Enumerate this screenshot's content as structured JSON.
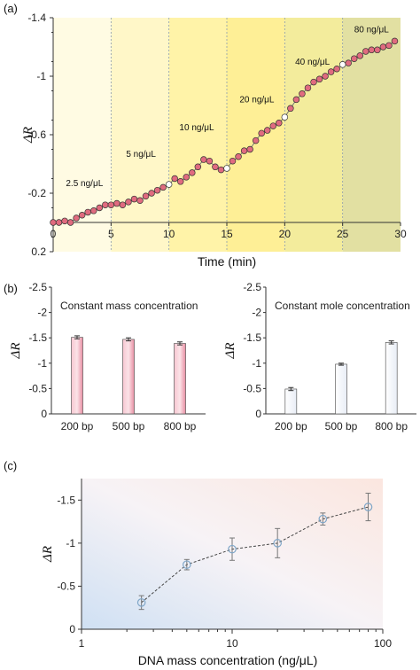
{
  "colors": {
    "marker_fill": "#e06b7f",
    "marker_open": "#ffffff",
    "bar_pink": "#f2a6b6",
    "bar_white": "#ffffff",
    "line_gray": "#777777",
    "marker_blue": "#7fa6c8"
  },
  "chart_data": [
    {
      "panel": "(a)",
      "type": "scatter",
      "xlabel": "Time (min)",
      "ylabel": "ΔR",
      "xlim": [
        0,
        30
      ],
      "ylim": [
        0.2,
        -1.4
      ],
      "y_inverted": true,
      "xticks": [
        0,
        5,
        10,
        15,
        20,
        25,
        30
      ],
      "yticks": [
        {
          "v": -1.4,
          "label": "-1.4"
        },
        {
          "v": -1.0,
          "label": "-1"
        },
        {
          "v": -0.6,
          "label": "-0.6"
        },
        {
          "v": -0.2,
          "label": "-0.2"
        },
        {
          "v": 0.2,
          "label": "0.2"
        }
      ],
      "segments": [
        {
          "x0": 0,
          "x1": 5,
          "label": "2.5 ng/μL",
          "label_x": 1.1,
          "label_y": -0.25,
          "color": "#fffbe3"
        },
        {
          "x0": 5,
          "x1": 10,
          "label": "5 ng/μL",
          "label_x": 6.3,
          "label_y": -0.45,
          "color": "#fff7c8"
        },
        {
          "x0": 10,
          "x1": 15,
          "label": "10 ng/μL",
          "label_x": 10.9,
          "label_y": -0.63,
          "color": "#fff3a8"
        },
        {
          "x0": 15,
          "x1": 20,
          "label": "20 ng/μL",
          "label_x": 16.1,
          "label_y": -0.82,
          "color": "#feef96"
        },
        {
          "x0": 20,
          "x1": 25,
          "label": "40 ng/μL",
          "label_x": 20.9,
          "label_y": -1.08,
          "color": "#f3ec9c"
        },
        {
          "x0": 25,
          "x1": 30,
          "label": "80 ng/μL",
          "label_x": 26.0,
          "label_y": -1.3,
          "color": "#e2e0a2"
        }
      ],
      "x": [
        0,
        0.5,
        1,
        1.5,
        2,
        2.5,
        3,
        3.5,
        4,
        4.5,
        5,
        5.5,
        6,
        6.5,
        7,
        7.5,
        8,
        8.5,
        9,
        9.5,
        10,
        10.5,
        11,
        11.5,
        12,
        12.5,
        13,
        13.5,
        14,
        14.5,
        15,
        15.5,
        16,
        16.5,
        17,
        17.5,
        18,
        18.5,
        19,
        19.5,
        20,
        20.5,
        21,
        21.5,
        22,
        22.5,
        23,
        23.5,
        24,
        24.5,
        25,
        25.5,
        26,
        26.5,
        27,
        27.5,
        28,
        28.5,
        29,
        29.5
      ],
      "y": [
        0.0,
        0.0,
        -0.01,
        0.0,
        -0.03,
        -0.05,
        -0.07,
        -0.08,
        -0.1,
        -0.12,
        -0.12,
        -0.13,
        -0.12,
        -0.14,
        -0.16,
        -0.15,
        -0.18,
        -0.2,
        -0.22,
        -0.24,
        -0.26,
        -0.3,
        -0.28,
        -0.31,
        -0.34,
        -0.38,
        -0.43,
        -0.42,
        -0.38,
        -0.36,
        -0.37,
        -0.42,
        -0.45,
        -0.49,
        -0.5,
        -0.56,
        -0.61,
        -0.63,
        -0.66,
        -0.68,
        -0.72,
        -0.78,
        -0.84,
        -0.88,
        -0.92,
        -0.96,
        -0.98,
        -1.0,
        -1.03,
        -1.05,
        -1.08,
        -1.09,
        -1.12,
        -1.14,
        -1.17,
        -1.18,
        -1.18,
        -1.2,
        -1.21,
        -1.24
      ],
      "open_points": [
        10,
        15,
        20,
        25
      ]
    },
    {
      "panel": "(b)",
      "type": "bar",
      "title": "Constant mass concentration",
      "ylabel": "ΔR",
      "categories": [
        "200 bp",
        "500 bp",
        "800 bp"
      ],
      "values": [
        -1.51,
        -1.47,
        -1.39
      ],
      "errors": [
        0.03,
        0.03,
        0.03
      ],
      "ylim": [
        0,
        -2.5
      ],
      "yticks": [
        {
          "v": 0,
          "label": "0"
        },
        {
          "v": -0.5,
          "label": "-0.5"
        },
        {
          "v": -1.0,
          "label": "-1"
        },
        {
          "v": -1.5,
          "label": "-1.5"
        },
        {
          "v": -2.0,
          "label": "-2"
        },
        {
          "v": -2.5,
          "label": "-2.5"
        }
      ]
    },
    {
      "panel": "(b)",
      "type": "bar",
      "title": "Constant mole concentration",
      "ylabel": "ΔR",
      "categories": [
        "200 bp",
        "500 bp",
        "800 bp"
      ],
      "values": [
        -0.49,
        -0.98,
        -1.41
      ],
      "errors": [
        0.03,
        0.02,
        0.03
      ],
      "ylim": [
        0,
        -2.5
      ],
      "yticks": [
        {
          "v": 0,
          "label": "0"
        },
        {
          "v": -0.5,
          "label": "-0.5"
        },
        {
          "v": -1.0,
          "label": "-1"
        },
        {
          "v": -1.5,
          "label": "-1.5"
        },
        {
          "v": -2.0,
          "label": "-2"
        },
        {
          "v": -2.5,
          "label": "-2.5"
        }
      ]
    },
    {
      "panel": "(c)",
      "type": "line",
      "xlabel": "DNA mass concentration  (ng/μL)",
      "ylabel": "ΔR",
      "x_scale": "log",
      "xlim": [
        1,
        100
      ],
      "ylim": [
        0,
        -1.75
      ],
      "xticks": [
        {
          "v": 1,
          "label": "1"
        },
        {
          "v": 10,
          "label": "10"
        },
        {
          "v": 100,
          "label": "100"
        }
      ],
      "yticks": [
        {
          "v": 0,
          "label": "0"
        },
        {
          "v": -0.5,
          "label": "-0.5"
        },
        {
          "v": -1.0,
          "label": "-1"
        },
        {
          "v": -1.5,
          "label": "-1.5"
        }
      ],
      "x": [
        2.5,
        5,
        10,
        20,
        40,
        80
      ],
      "y": [
        -0.31,
        -0.75,
        -0.93,
        -1.0,
        -1.28,
        -1.42
      ],
      "errors": [
        0.08,
        0.06,
        0.13,
        0.17,
        0.07,
        0.16
      ]
    }
  ]
}
